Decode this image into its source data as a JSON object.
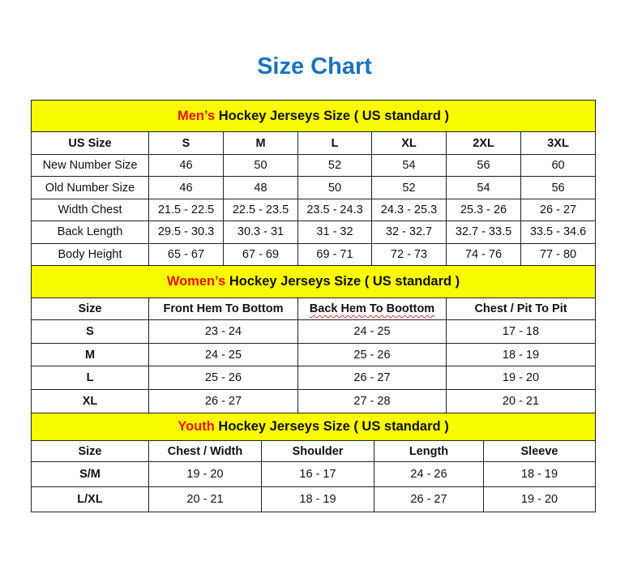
{
  "title": "Size Chart",
  "colors": {
    "title": "#1a73c0",
    "banner": "#fbfb00",
    "accent_red": "#e8100f"
  },
  "sections": [
    {
      "highlight": "Men’s",
      "heading": " Hockey Jerseys Size ( US standard )",
      "columns": [
        "US Size",
        "S",
        "M",
        "L",
        "XL",
        "2XL",
        "3XL"
      ],
      "rows": [
        [
          "New Number Size",
          "46",
          "50",
          "52",
          "54",
          "56",
          "60"
        ],
        [
          "Old Number Size",
          "46",
          "48",
          "50",
          "52",
          "54",
          "56"
        ],
        [
          "Width Chest",
          "21.5 - 22.5",
          "22.5 - 23.5",
          "23.5 - 24.3",
          "24.3 - 25.3",
          "25.3 - 26",
          "26 - 27"
        ],
        [
          "Back Length",
          "29.5 - 30.3",
          "30.3 - 31",
          "31 - 32",
          "32 - 32.7",
          "32.7 - 33.5",
          "33.5 - 34.6"
        ],
        [
          "Body Height",
          "65 - 67",
          "67 - 69",
          "69 - 71",
          "72 - 73",
          "74 - 76",
          "77 - 80"
        ]
      ]
    },
    {
      "highlight": "Women’s",
      "heading": " Hockey Jerseys Size ( US standard )",
      "columns": [
        "Size",
        "Front Hem To Bottom",
        "Back Hem To Boottom",
        "Chest / Pit To Pit"
      ],
      "rows": [
        [
          "S",
          "23 - 24",
          "24 - 25",
          "17 - 18"
        ],
        [
          "M",
          "24 - 25",
          "25 - 26",
          "18 - 19"
        ],
        [
          "L",
          "25 - 26",
          "26 - 27",
          "19 - 20"
        ],
        [
          "XL",
          "26 - 27",
          "27 - 28",
          "20 - 21"
        ]
      ]
    },
    {
      "highlight": "Youth",
      "heading": " Hockey Jerseys Size ( US standard )",
      "columns": [
        "Size",
        "Chest / Width",
        "Shoulder",
        "Length",
        "Sleeve"
      ],
      "rows": [
        [
          "S/M",
          "19 - 20",
          "16 - 17",
          "24 - 26",
          "18 - 19"
        ],
        [
          "L/XL",
          "20 - 21",
          "18 - 19",
          "26 - 27",
          "19 - 20"
        ]
      ]
    }
  ]
}
